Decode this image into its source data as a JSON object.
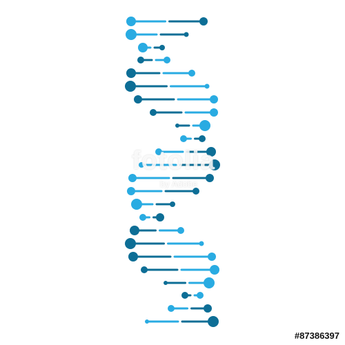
{
  "image": {
    "subject": "dna-helix-icon",
    "colors": {
      "light": "#29abe2",
      "dark": "#0d6e96",
      "background": "#ffffff"
    },
    "strands": [
      {
        "left": "light",
        "right": "dark"
      },
      {
        "left": "light",
        "right": "dark"
      },
      {
        "left": "light",
        "right": "dark"
      },
      {
        "left": "dark",
        "right": "light"
      },
      {
        "left": "dark",
        "right": "light"
      },
      {
        "left": "dark",
        "right": "light"
      },
      {
        "left": "dark",
        "right": "light"
      },
      {
        "left": "dark",
        "right": "light"
      },
      {
        "left": "dark",
        "right": "light"
      },
      {
        "left": "light",
        "right": "dark"
      },
      {
        "left": "light",
        "right": "dark"
      },
      {
        "left": "light",
        "right": "dark"
      },
      {
        "left": "light",
        "right": "dark"
      },
      {
        "left": "light",
        "right": "dark"
      },
      {
        "left": "light",
        "right": "dark"
      },
      {
        "left": "light",
        "right": "dark"
      },
      {
        "left": "dark",
        "right": "light"
      },
      {
        "left": "dark",
        "right": "light"
      },
      {
        "left": "dark",
        "right": "light"
      },
      {
        "left": "dark",
        "right": "light"
      },
      {
        "left": "dark",
        "right": "light"
      },
      {
        "left": "dark",
        "right": "light"
      },
      {
        "left": "light",
        "right": "dark"
      },
      {
        "left": "light",
        "right": "dark"
      },
      {
        "left": "light",
        "right": "dark"
      }
    ]
  },
  "watermark": {
    "brand": "fotolia",
    "sub": "by Adobe"
  },
  "stock_id": "#87386397"
}
